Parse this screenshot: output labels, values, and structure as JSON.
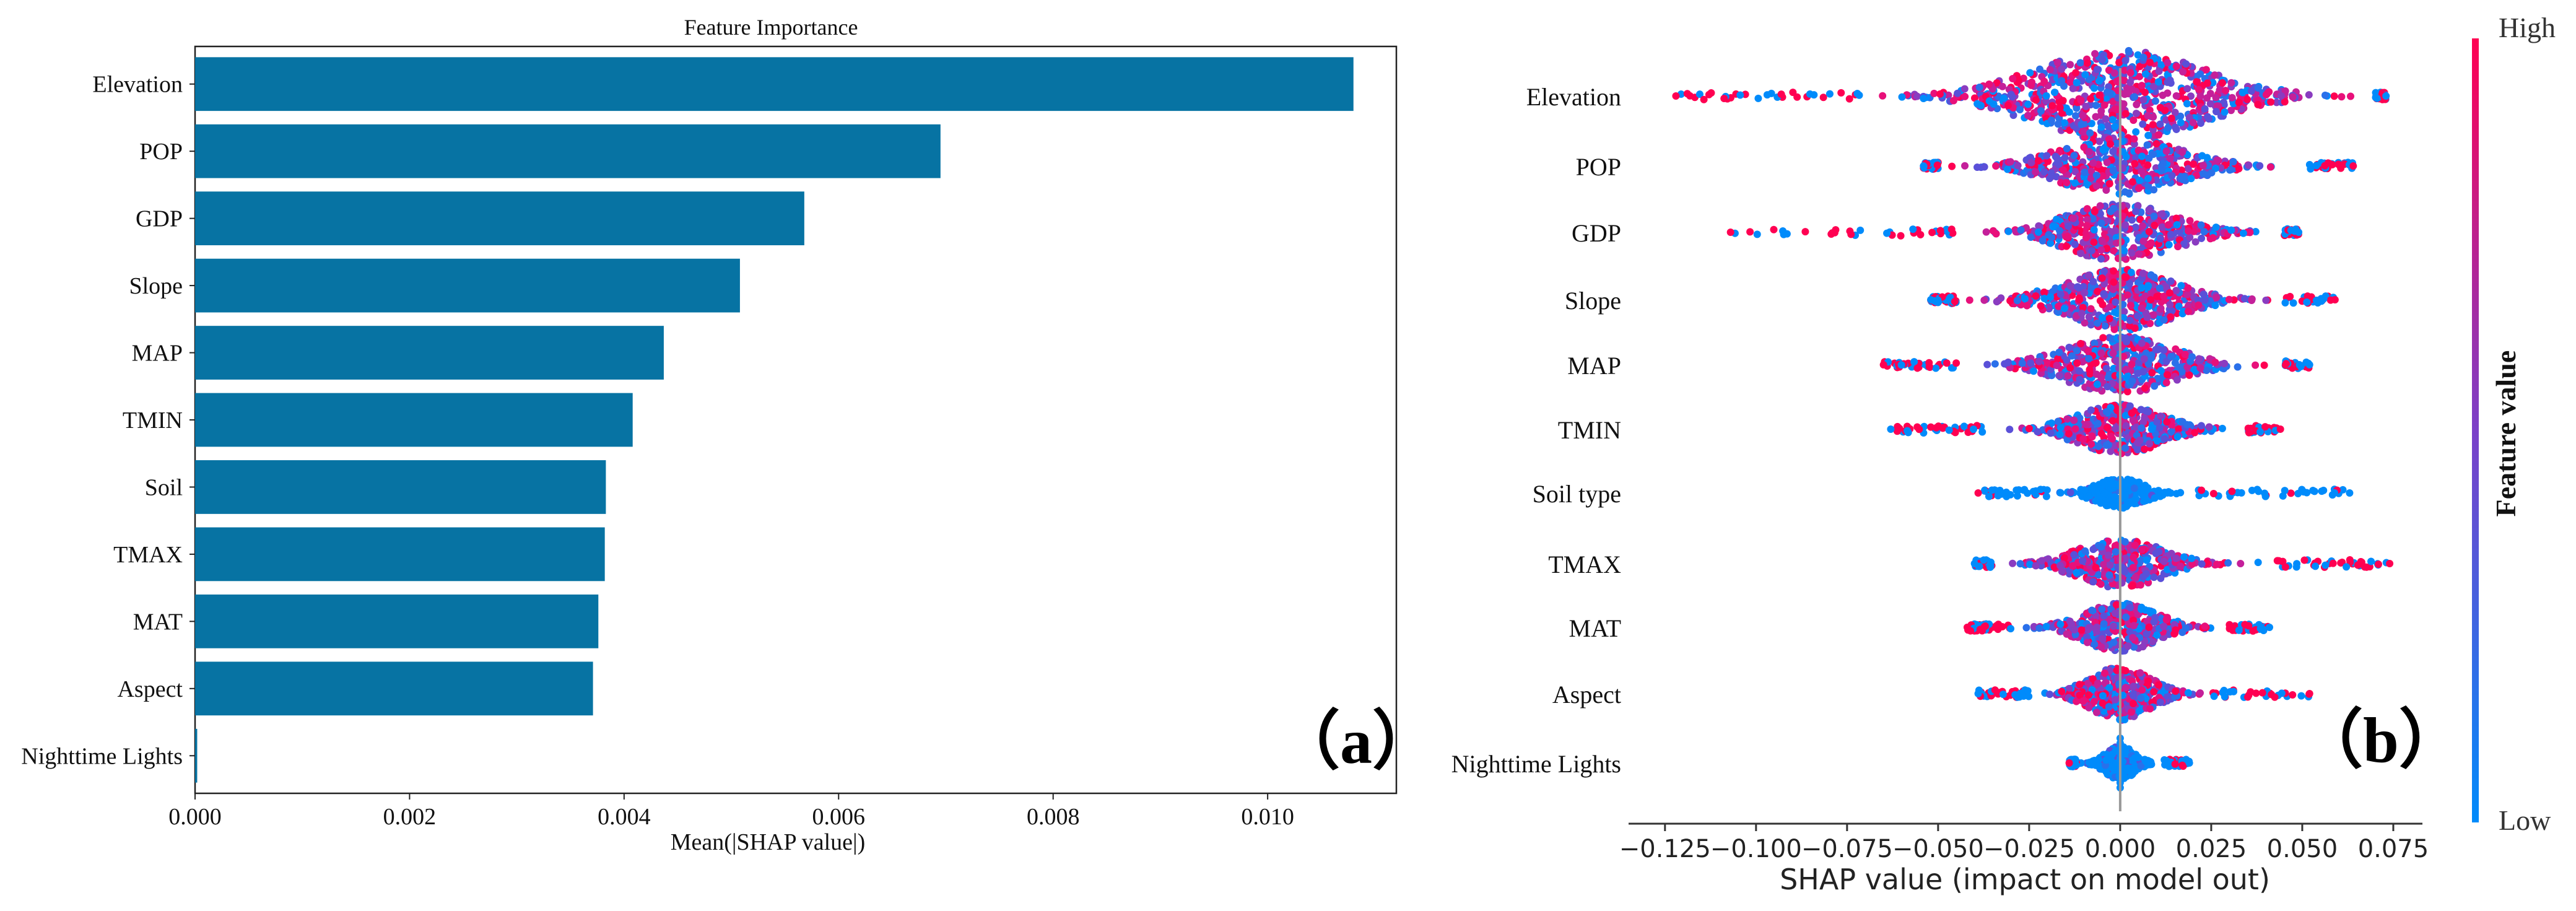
{
  "chart_data": [
    {
      "type": "bar",
      "orientation": "horizontal",
      "title": "Feature Importance",
      "xlabel": "Mean(|SHAP value|)",
      "categories": [
        "Elevation",
        "POP",
        "GDP",
        "Slope",
        "MAP",
        "TMIN",
        "Soil",
        "TMAX",
        "MAT",
        "Aspect",
        "Nighttime Lights"
      ],
      "values": [
        0.0108,
        0.00695,
        0.00568,
        0.00508,
        0.00437,
        0.00408,
        0.00383,
        0.00382,
        0.00376,
        0.00371,
        2e-05
      ],
      "xlim": [
        0,
        0.0112
      ],
      "xticks": [
        "0.000",
        "0.002",
        "0.004",
        "0.006",
        "0.008",
        "0.010"
      ],
      "tick_values": [
        0,
        0.002,
        0.004,
        0.006,
        0.008,
        0.01
      ],
      "bar_color": "#0773a3",
      "panel_label": "（a）"
    },
    {
      "type": "scatter",
      "subtype": "beeswarm",
      "xlabel": "SHAP value (impact on model out)",
      "categories": [
        "Elevation",
        "POP",
        "GDP",
        "Slope",
        "MAP",
        "TMIN",
        "Soil type",
        "TMAX",
        "MAT",
        "Aspect",
        "Nighttime Lights"
      ],
      "xlim": [
        -0.135,
        0.083
      ],
      "xticks": [
        "−0.125",
        "−0.100",
        "−0.075",
        "−0.050",
        "−0.025",
        "0.000",
        "0.025",
        "0.050",
        "0.075"
      ],
      "tick_values": [
        -0.125,
        -0.1,
        -0.075,
        -0.05,
        -0.025,
        0,
        0.025,
        0.05,
        0.075
      ],
      "ranges": [
        {
          "feature": "Elevation",
          "min": -0.122,
          "max": 0.073,
          "core": 0.07,
          "width": 1.0
        },
        {
          "feature": "POP",
          "min": -0.054,
          "max": 0.064,
          "core": 0.05,
          "width": 0.55
        },
        {
          "feature": "GDP",
          "min": -0.107,
          "max": 0.049,
          "core": 0.045,
          "width": 0.55
        },
        {
          "feature": "Slope",
          "min": -0.052,
          "max": 0.059,
          "core": 0.045,
          "width": 0.6
        },
        {
          "feature": "MAP",
          "min": -0.065,
          "max": 0.052,
          "core": 0.045,
          "width": 0.55
        },
        {
          "feature": "TMIN",
          "min": -0.063,
          "max": 0.044,
          "core": 0.035,
          "width": 0.45
        },
        {
          "feature": "Soil type",
          "min": -0.039,
          "max": 0.063,
          "core": 0.02,
          "width": 0.2
        },
        {
          "feature": "TMAX",
          "min": -0.04,
          "max": 0.074,
          "core": 0.035,
          "width": 0.45
        },
        {
          "feature": "MAT",
          "min": -0.042,
          "max": 0.041,
          "core": 0.03,
          "width": 0.45
        },
        {
          "feature": "Aspect",
          "min": -0.039,
          "max": 0.052,
          "core": 0.025,
          "width": 0.5
        },
        {
          "feature": "Nighttime Lights",
          "min": -0.014,
          "max": 0.019,
          "core": 0.012,
          "width": 0.25
        }
      ],
      "colorbar": {
        "label": "Feature value",
        "high": "High",
        "low": "Low",
        "high_color": "#ff0052",
        "low_color": "#008bfb"
      },
      "panel_label": "（b）"
    }
  ]
}
